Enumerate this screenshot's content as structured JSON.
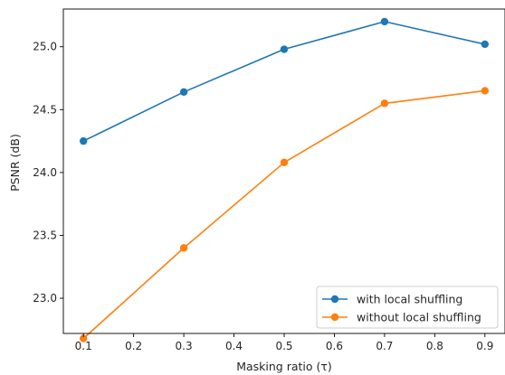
{
  "chart_data": {
    "type": "line",
    "title": "",
    "xlabel": "Masking ratio (τ)",
    "ylabel": "PSNR (dB)",
    "xlim": [
      0.06,
      0.94
    ],
    "ylim": [
      22.72,
      25.3
    ],
    "xticks": [
      0.1,
      0.2,
      0.3,
      0.4,
      0.5,
      0.6,
      0.7,
      0.8,
      0.9
    ],
    "xtick_labels": [
      "0.1",
      "0.2",
      "0.3",
      "0.4",
      "0.5",
      "0.6",
      "0.7",
      "0.8",
      "0.9"
    ],
    "yticks": [
      23.0,
      23.5,
      24.0,
      24.5,
      25.0
    ],
    "ytick_labels": [
      "23.0",
      "23.5",
      "24.0",
      "24.5",
      "25.0"
    ],
    "grid": false,
    "legend_position": "bottom-right",
    "x": [
      0.1,
      0.3,
      0.5,
      0.7,
      0.9
    ],
    "series": [
      {
        "name": "with local shuffling",
        "color": "#1f77b4",
        "marker": "circle",
        "values": [
          24.25,
          24.64,
          24.98,
          25.2,
          25.02
        ]
      },
      {
        "name": "without local shuffling",
        "color": "#ff7f0e",
        "marker": "circle",
        "values": [
          22.68,
          23.4,
          24.08,
          24.55,
          24.65
        ]
      }
    ]
  }
}
